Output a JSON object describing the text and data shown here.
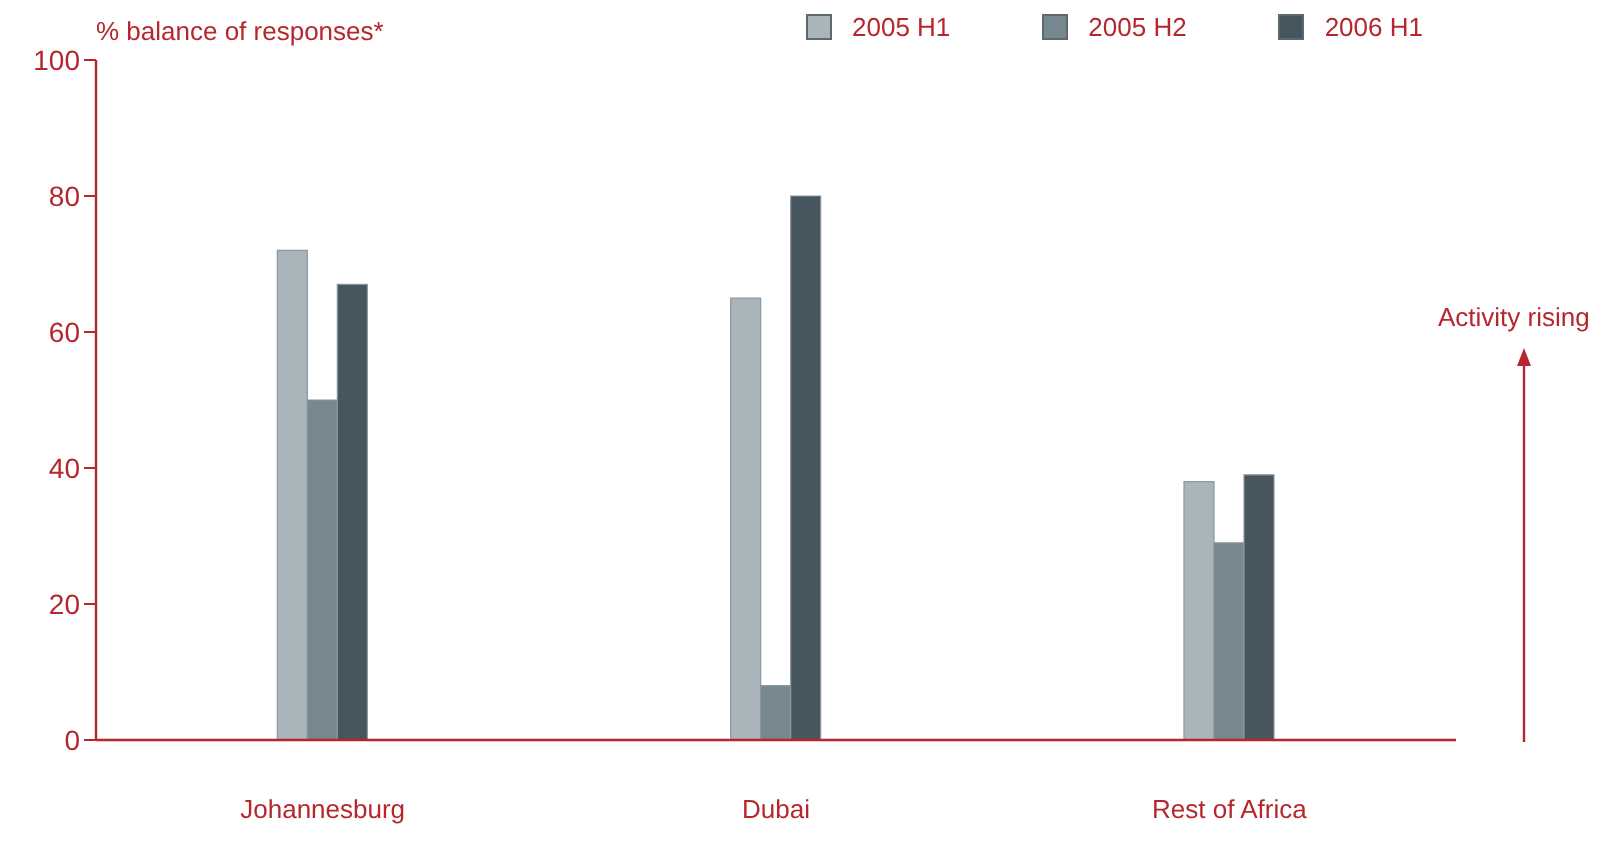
{
  "chart_data": {
    "type": "bar",
    "ylabel": "% balance of responses*",
    "categories": [
      "Johannesburg",
      "Dubai",
      "Rest of Africa"
    ],
    "series": [
      {
        "name": "2005 H1",
        "color": "#aab5bb",
        "values": [
          72,
          65,
          38
        ]
      },
      {
        "name": "2005 H2",
        "color": "#778790",
        "values": [
          50,
          8,
          29
        ]
      },
      {
        "name": "2006 H1",
        "color": "#47565e",
        "values": [
          67,
          80,
          39
        ]
      }
    ],
    "ylim": [
      0,
      100
    ],
    "yticks": [
      0,
      20,
      40,
      60,
      80,
      100
    ],
    "grid": false,
    "legend": "top right",
    "annotations": [
      "Activity rising"
    ]
  }
}
